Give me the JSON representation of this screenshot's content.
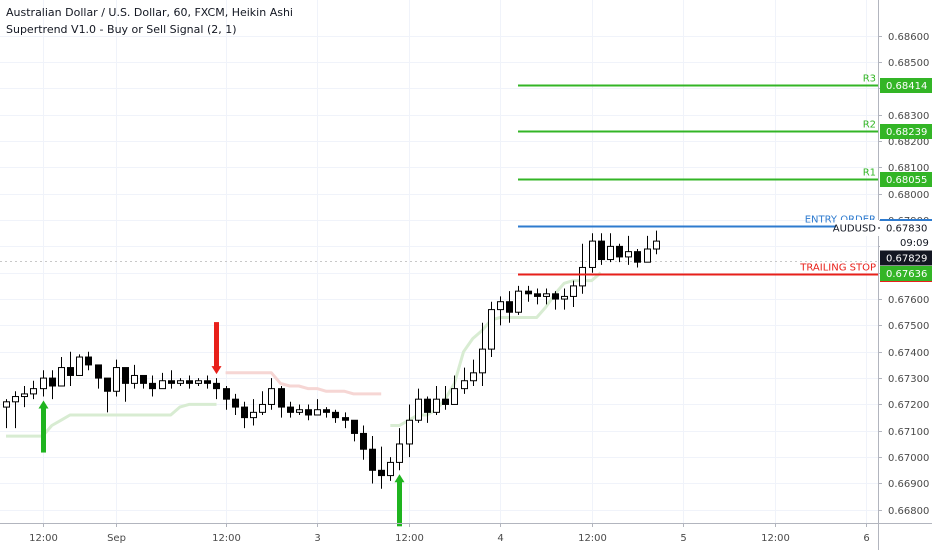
{
  "header": {
    "title": "Australian Dollar / U.S. Dollar, 60, FXCM, Heikin Ashi",
    "indicator": "Supertrend V1.0 - Buy or Sell Signal (2, 1)"
  },
  "colors": {
    "background": "#ffffff",
    "bull_candle": "#ffffff",
    "bear_candle": "#000000",
    "candle_outline": "#000000",
    "level_green": "#33b526",
    "entry_blue": "#2e7bcf",
    "stop_red": "#e8201a",
    "buy_arrow": "#1fb41f",
    "sell_arrow": "#e8201a",
    "supertrend_up": "#d8ecd2",
    "supertrend_down": "#f6d6d4",
    "current_price_tag": "#131722",
    "supertrend_tag": "#e2191e"
  },
  "chart_data": {
    "type": "candlestick",
    "title": "Australian Dollar / U.S. Dollar, 60, FXCM, Heikin Ashi",
    "symbol": "AUDUSD",
    "y_axis": {
      "range": [
        0.6675,
        0.6872
      ],
      "ticks": [
        0.686,
        0.685,
        0.684,
        0.683,
        0.682,
        0.681,
        0.68,
        0.679,
        0.678,
        0.677,
        0.676,
        0.675,
        0.674,
        0.673,
        0.672,
        0.671,
        0.67,
        0.669,
        0.668
      ],
      "tick_labels": [
        "0.68600",
        "0.68500",
        "0.68400",
        "0.68300",
        "0.68200",
        "0.68100",
        "0.68000",
        "0.67900",
        "0.67800",
        "0.67700",
        "0.67600",
        "0.67500",
        "0.67400",
        "0.67300",
        "0.67200",
        "0.67100",
        "0.67000",
        "0.66900",
        "0.66800"
      ]
    },
    "x_axis": {
      "labels": [
        "12:00",
        "Sep",
        "12:00",
        "3",
        "12:00",
        "4",
        "12:00",
        "5",
        "12:00",
        "6"
      ],
      "label_bars": [
        4,
        12,
        24,
        34,
        44,
        54,
        64,
        74,
        84,
        94
      ]
    },
    "candles": [
      [
        0.6719,
        0.6721,
        0.6711,
        0.6722
      ],
      [
        0.6721,
        0.6723,
        0.6711,
        0.6725
      ],
      [
        0.6723,
        0.6724,
        0.6719,
        0.6727
      ],
      [
        0.6724,
        0.6726,
        0.6722,
        0.6729
      ],
      [
        0.6726,
        0.673,
        0.6723,
        0.6733
      ],
      [
        0.673,
        0.6727,
        0.6722,
        0.6733
      ],
      [
        0.6727,
        0.6734,
        0.6727,
        0.6738
      ],
      [
        0.6734,
        0.6731,
        0.6727,
        0.674
      ],
      [
        0.6731,
        0.6738,
        0.6731,
        0.6739
      ],
      [
        0.6738,
        0.6735,
        0.6733,
        0.674
      ],
      [
        0.6735,
        0.673,
        0.6726,
        0.6735
      ],
      [
        0.673,
        0.6725,
        0.6717,
        0.673
      ],
      [
        0.6725,
        0.6734,
        0.6723,
        0.6737
      ],
      [
        0.6734,
        0.6728,
        0.6721,
        0.6734
      ],
      [
        0.6728,
        0.6731,
        0.6726,
        0.6735
      ],
      [
        0.6731,
        0.6728,
        0.6726,
        0.6731
      ],
      [
        0.6728,
        0.6726,
        0.6723,
        0.6731
      ],
      [
        0.6726,
        0.6729,
        0.6726,
        0.6732
      ],
      [
        0.6729,
        0.6728,
        0.6726,
        0.6733
      ],
      [
        0.6728,
        0.6729,
        0.6727,
        0.673
      ],
      [
        0.6729,
        0.6728,
        0.6726,
        0.6731
      ],
      [
        0.6728,
        0.6729,
        0.6727,
        0.673
      ],
      [
        0.6729,
        0.6728,
        0.6726,
        0.6731
      ],
      [
        0.6728,
        0.6726,
        0.6722,
        0.673
      ],
      [
        0.6726,
        0.6722,
        0.6718,
        0.6727
      ],
      [
        0.6722,
        0.6719,
        0.6716,
        0.6724
      ],
      [
        0.6719,
        0.6715,
        0.6711,
        0.6721
      ],
      [
        0.6715,
        0.6717,
        0.6712,
        0.6722
      ],
      [
        0.6717,
        0.672,
        0.6716,
        0.6725
      ],
      [
        0.672,
        0.6726,
        0.6718,
        0.673
      ],
      [
        0.6726,
        0.6719,
        0.6715,
        0.6727
      ],
      [
        0.6719,
        0.6717,
        0.6715,
        0.6721
      ],
      [
        0.6717,
        0.6718,
        0.6716,
        0.672
      ],
      [
        0.6718,
        0.6716,
        0.6714,
        0.672
      ],
      [
        0.6716,
        0.6718,
        0.6716,
        0.6722
      ],
      [
        0.6718,
        0.6717,
        0.6715,
        0.6719
      ],
      [
        0.6717,
        0.6715,
        0.6713,
        0.6718
      ],
      [
        0.6715,
        0.6714,
        0.6711,
        0.6717
      ],
      [
        0.6714,
        0.6709,
        0.6706,
        0.6714
      ],
      [
        0.6709,
        0.6703,
        0.6699,
        0.6712
      ],
      [
        0.6703,
        0.6695,
        0.669,
        0.6708
      ],
      [
        0.6695,
        0.6693,
        0.6688,
        0.6704
      ],
      [
        0.6693,
        0.6698,
        0.6691,
        0.67
      ],
      [
        0.6698,
        0.6705,
        0.6695,
        0.6711
      ],
      [
        0.6705,
        0.6714,
        0.67,
        0.672
      ],
      [
        0.6714,
        0.6722,
        0.6713,
        0.6726
      ],
      [
        0.6722,
        0.6717,
        0.6713,
        0.6723
      ],
      [
        0.6717,
        0.6722,
        0.6716,
        0.6727
      ],
      [
        0.6722,
        0.672,
        0.6718,
        0.6727
      ],
      [
        0.672,
        0.6726,
        0.672,
        0.6731
      ],
      [
        0.6726,
        0.6729,
        0.6724,
        0.6734
      ],
      [
        0.6729,
        0.6732,
        0.6727,
        0.6737
      ],
      [
        0.6732,
        0.6741,
        0.6727,
        0.6751
      ],
      [
        0.6741,
        0.6756,
        0.6738,
        0.6759
      ],
      [
        0.6756,
        0.6759,
        0.675,
        0.6761
      ],
      [
        0.6759,
        0.6755,
        0.6751,
        0.6763
      ],
      [
        0.6755,
        0.6763,
        0.6754,
        0.6765
      ],
      [
        0.6763,
        0.6762,
        0.6759,
        0.6765
      ],
      [
        0.6762,
        0.6761,
        0.6758,
        0.6764
      ],
      [
        0.6761,
        0.6762,
        0.6758,
        0.6764
      ],
      [
        0.6762,
        0.676,
        0.6756,
        0.6763
      ],
      [
        0.676,
        0.6761,
        0.6756,
        0.6764
      ],
      [
        0.6761,
        0.6765,
        0.6757,
        0.6767
      ],
      [
        0.6765,
        0.6772,
        0.6762,
        0.6781
      ],
      [
        0.6772,
        0.6782,
        0.677,
        0.6785
      ],
      [
        0.6782,
        0.6775,
        0.6773,
        0.6785
      ],
      [
        0.6775,
        0.678,
        0.6774,
        0.6785
      ],
      [
        0.678,
        0.6776,
        0.6774,
        0.6781
      ],
      [
        0.6776,
        0.6778,
        0.6773,
        0.6784
      ],
      [
        0.6778,
        0.6774,
        0.6772,
        0.6779
      ],
      [
        0.6774,
        0.6779,
        0.6774,
        0.6784
      ],
      [
        0.6779,
        0.6782,
        0.6777,
        0.6786
      ]
    ],
    "candle_format": [
      "open",
      "close",
      "low",
      "high"
    ],
    "supertrend": [
      [
        0.6708,
        0.6708,
        0.6708,
        0.6708,
        0.6708,
        0.6712,
        0.6714,
        0.6716,
        0.6716,
        0.6716,
        0.6716,
        0.6716,
        0.6716,
        0.6716,
        0.6716,
        0.6716,
        0.6716,
        0.6716,
        0.6716,
        0.6719,
        0.672,
        0.672,
        0.672,
        0.672
      ],
      [
        0.6732,
        0.6732,
        0.6732,
        0.6732,
        0.6732,
        0.6732,
        0.6728,
        0.6727,
        0.6727,
        0.6726,
        0.6726,
        0.6725,
        0.6725,
        0.6725,
        0.6724,
        0.6724,
        0.6724,
        0.6724
      ],
      [
        0.6712,
        0.6712,
        0.6714,
        0.6716,
        0.6716,
        0.6718,
        0.6722,
        0.6728,
        0.674,
        0.6745,
        0.6748,
        0.6752,
        0.6753,
        0.6753,
        0.6753,
        0.6753,
        0.6753,
        0.6757,
        0.6762,
        0.6766,
        0.6767,
        0.6767,
        0.6767,
        0.677
      ]
    ],
    "signals": [
      {
        "type": "buy",
        "bar": 4
      },
      {
        "type": "sell",
        "bar": 23
      },
      {
        "type": "buy",
        "bar": 43
      }
    ],
    "levels": [
      {
        "label": "R3",
        "value": 0.68414,
        "tag": "0.68414"
      },
      {
        "label": "R2",
        "value": 0.68239,
        "tag": "0.68239"
      },
      {
        "label": "R1",
        "value": 0.68055,
        "tag": "0.68055"
      },
      {
        "label": "ENTRY ORDER",
        "value": 0.67877,
        "tag": "0.67877"
      },
      {
        "label": "TRAILING STOP",
        "value": 0.67697,
        "tag": "0.67697"
      }
    ],
    "level_start_bar": 56,
    "symbol_price": "0.67830",
    "price_tag": "0.67829",
    "countdown": "09:09",
    "supertrend_tag": "0.67636"
  }
}
